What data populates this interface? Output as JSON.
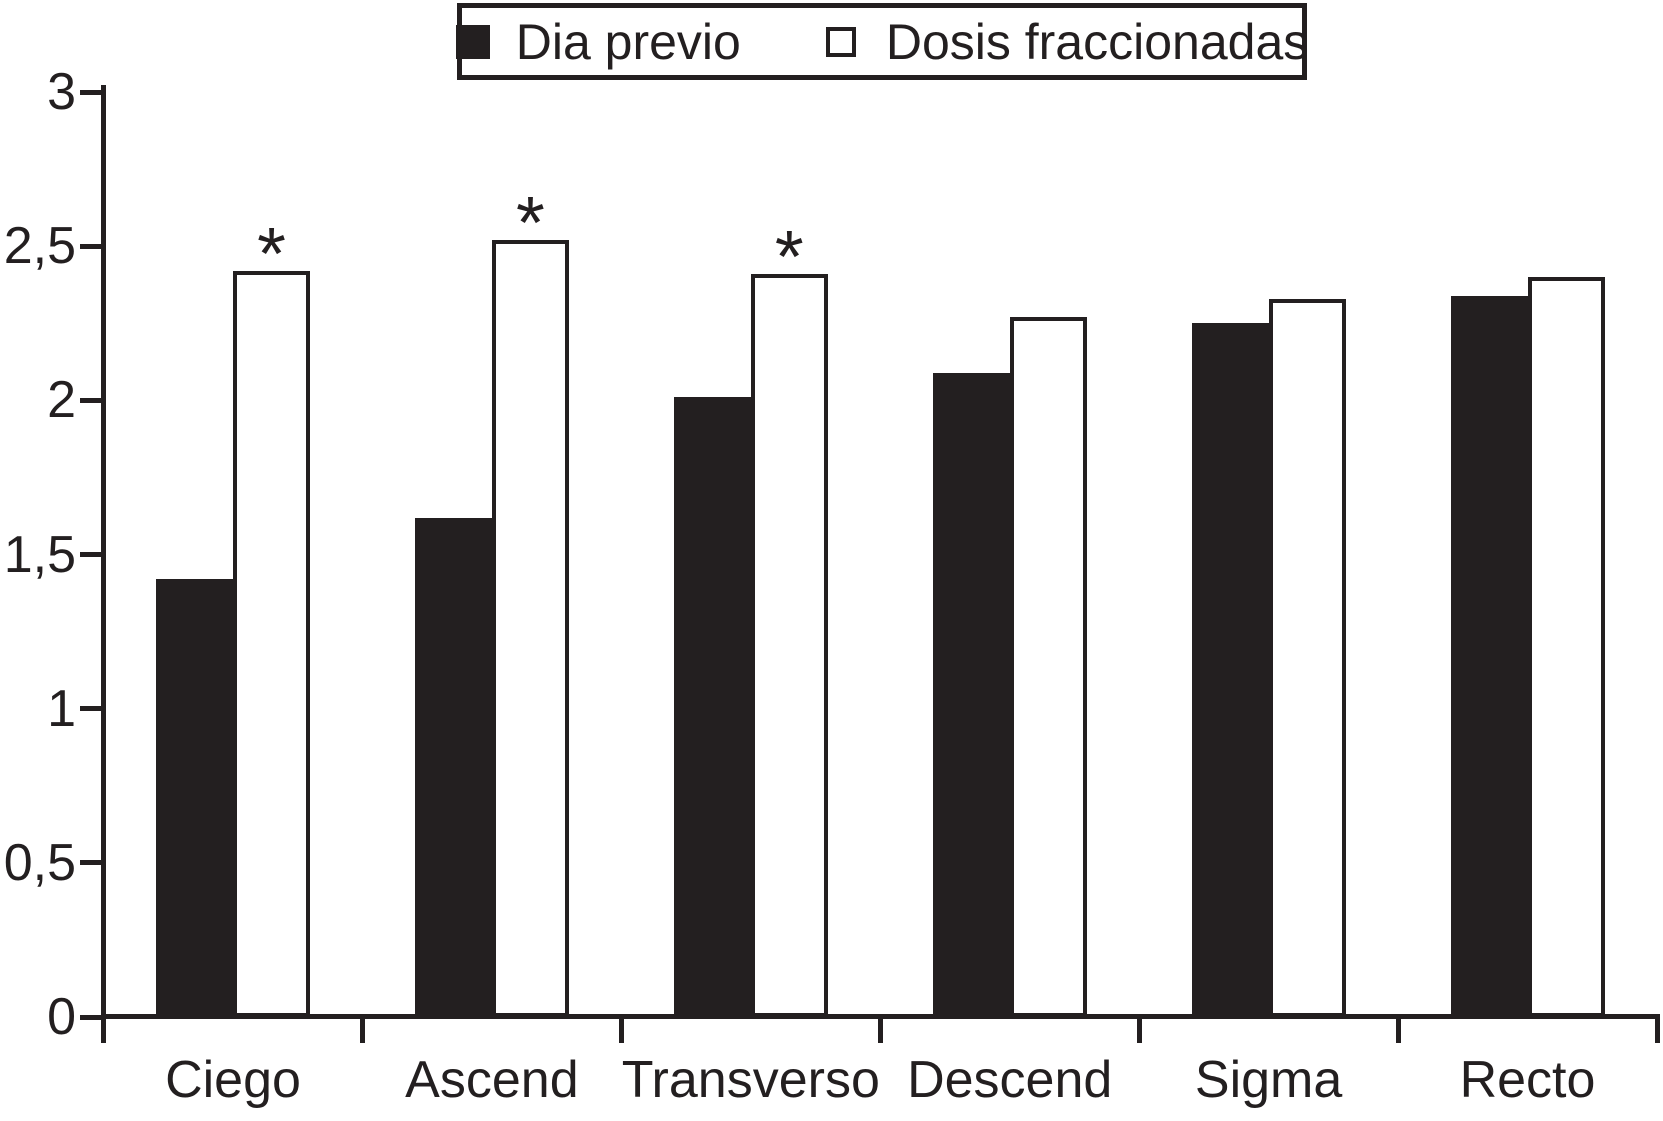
{
  "legend": {
    "items": [
      {
        "label": "Dia previo",
        "marker": "filled-square",
        "color": "#231f20"
      },
      {
        "label": "Dosis fraccionadas",
        "marker": "open-square",
        "color": "#ffffff",
        "border_color": "#231f20"
      }
    ]
  },
  "chart_data": {
    "type": "bar",
    "title": "",
    "xlabel": "",
    "ylabel": "",
    "categories": [
      "Ciego",
      "Ascend",
      "Transverso",
      "Descend",
      "Sigma",
      "Recto"
    ],
    "series": [
      {
        "name": "Dia previo",
        "style": "filled",
        "color": "#231f20",
        "values": [
          1.42,
          1.62,
          2.01,
          2.09,
          2.25,
          2.34
        ]
      },
      {
        "name": "Dosis fraccionadas",
        "style": "open",
        "color": "#ffffff",
        "border_color": "#231f20",
        "values": [
          2.42,
          2.52,
          2.41,
          2.27,
          2.33,
          2.4
        ]
      }
    ],
    "annotations": {
      "symbol": "*",
      "on_series": "Dosis fraccionadas",
      "categories": [
        "Ciego",
        "Ascend",
        "Transverso"
      ]
    },
    "ylim": [
      0,
      3
    ],
    "yticks": [
      "0",
      "0,5",
      "1",
      "1,5",
      "2",
      "2,5",
      "3"
    ],
    "decimal_separator": ",",
    "grid": false,
    "legend_position": "top-center",
    "colors": {
      "ink": "#231f20",
      "background": "#ffffff"
    }
  }
}
